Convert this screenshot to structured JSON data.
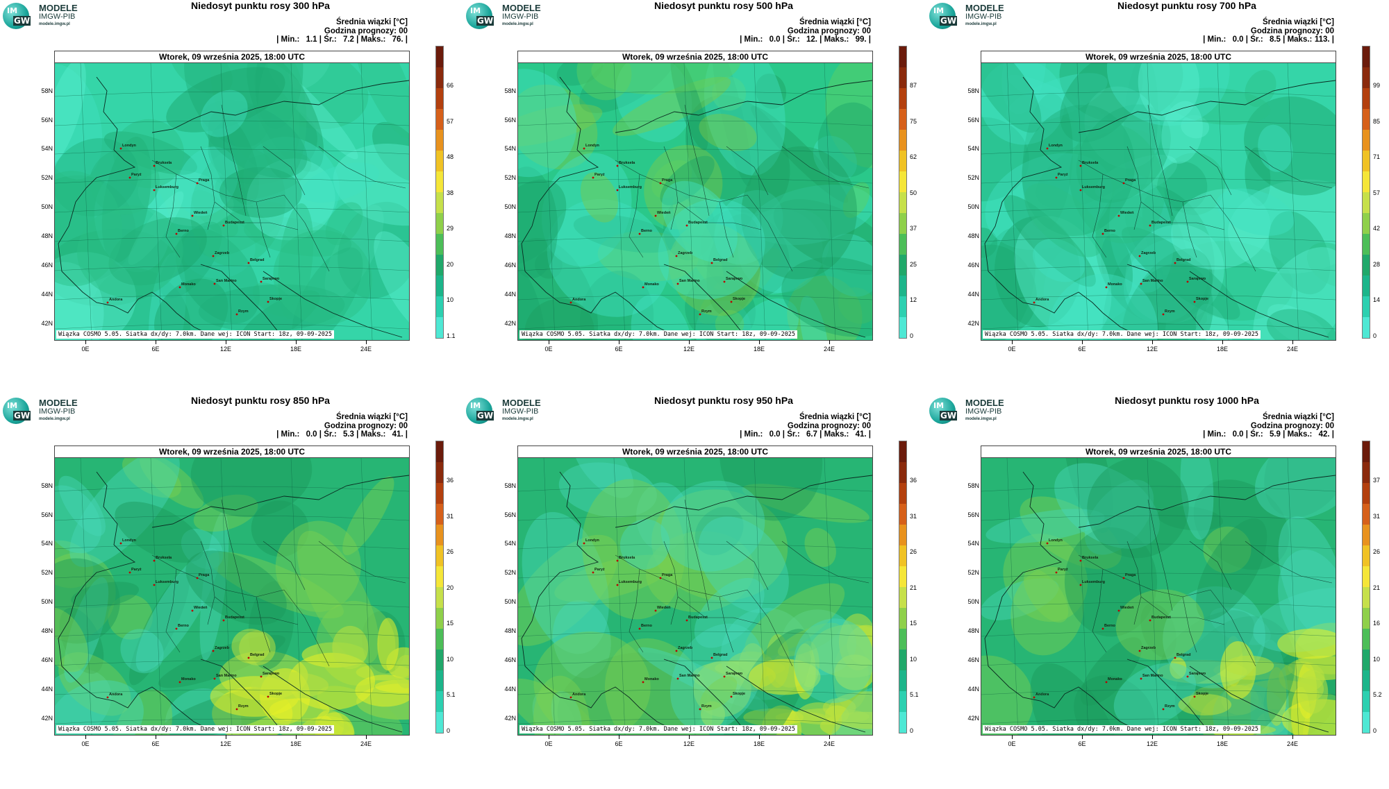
{
  "logo": {
    "mark_top": "IM",
    "mark_bottom": "GW",
    "line1": "MODELE",
    "line2": "IMGW-PIB",
    "line3": "modele.imgw.pl"
  },
  "common": {
    "stats_header": "Średnia wiązki [°C]",
    "forecast_hour": "Godzina prognozy: 00",
    "min_label": "| Min.:",
    "avg_label": "| Śr.:",
    "max_label": "| Maks.:",
    "date_line": "Wtorek, 09 września 2025, 18:00 UTC",
    "footer": "Wiązka COSMO 5.05. Siatka dx/dy: 7.0km. Dane wej: ICON Start: 18z, 09-09-2025",
    "lat_labels": [
      "58N",
      "56N",
      "54N",
      "52N",
      "50N",
      "48N",
      "46N",
      "44N",
      "42N"
    ],
    "lon_labels": [
      "0E",
      "6E",
      "12E",
      "18E",
      "24E"
    ],
    "cities": [
      "Londyn",
      "Bruksela",
      "Paryż",
      "Luksemburg",
      "Praga",
      "Wiedeń",
      "Budapeszt",
      "Berno",
      "Zagrzeb",
      "Belgrad",
      "San Marino",
      "Sarajewo",
      "Monako",
      "Skopje",
      "Andora",
      "Rzym"
    ]
  },
  "panels": [
    {
      "title": "Niedosyt punktu rosy 300 hPa",
      "min": "1.1",
      "avg": "7.2",
      "max": "76.",
      "cbar": [
        "66",
        "57",
        "48",
        "38",
        "29",
        "20",
        "10",
        "1.1"
      ],
      "scheme": "light"
    },
    {
      "title": "Niedosyt punktu rosy 500 hPa",
      "min": "0.0",
      "avg": "12.",
      "max": "99.",
      "cbar": [
        "87",
        "75",
        "62",
        "50",
        "37",
        "25",
        "12",
        "0"
      ],
      "scheme": "mid"
    },
    {
      "title": "Niedosyt punktu rosy 700 hPa",
      "min": "0.0",
      "avg": "8.5",
      "max": "113.",
      "cbar": [
        "99",
        "85",
        "71",
        "57",
        "42",
        "28",
        "14",
        "0"
      ],
      "scheme": "light"
    },
    {
      "title": "Niedosyt punktu rosy 850 hPa",
      "min": "0.0",
      "avg": "5.3",
      "max": "41.",
      "cbar": [
        "36",
        "31",
        "26",
        "20",
        "15",
        "10",
        "5.1",
        "0"
      ],
      "scheme": "yellow"
    },
    {
      "title": "Niedosyt punktu rosy 950 hPa",
      "min": "0.0",
      "avg": "6.7",
      "max": "41.",
      "cbar": [
        "36",
        "31",
        "26",
        "21",
        "15",
        "10",
        "5.1",
        "0"
      ],
      "scheme": "yellow"
    },
    {
      "title": "Niedosyt punktu rosy 1000 hPa",
      "min": "0.0",
      "avg": "5.9",
      "max": "42.",
      "cbar": [
        "37",
        "31",
        "26",
        "21",
        "16",
        "10",
        "5.2",
        "0"
      ],
      "scheme": "yellow"
    }
  ]
}
